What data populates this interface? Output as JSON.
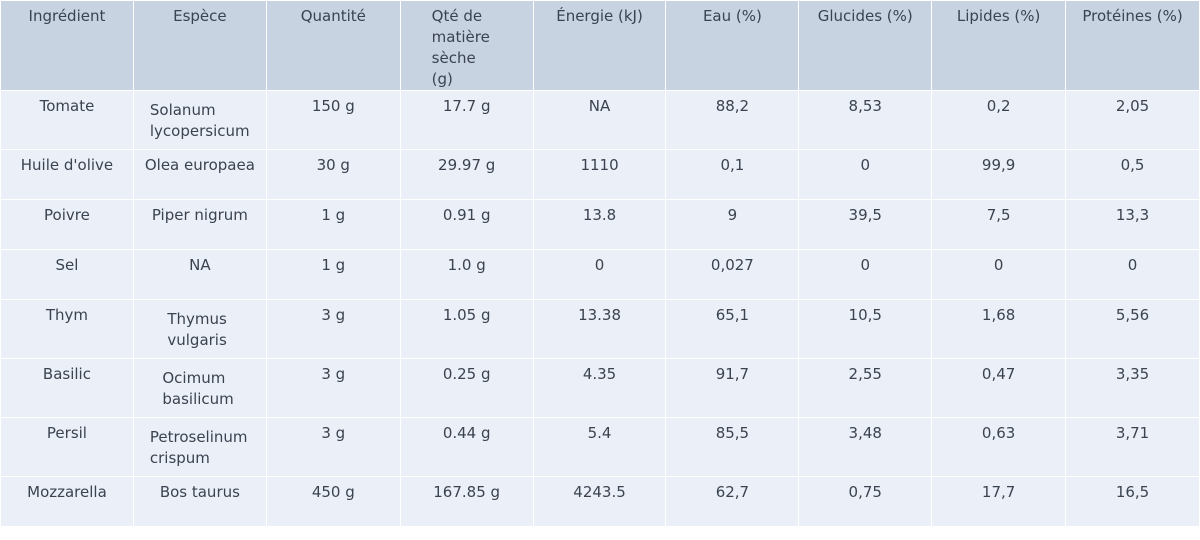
{
  "chart_data": {
    "type": "table",
    "columns": [
      "Ingrédient",
      "Espèce",
      "Quantité",
      "Qté de matière sèche (g)",
      "Énergie (kJ)",
      "Eau (%)",
      "Glucides (%)",
      "Lipides (%)",
      "Protéines (%)"
    ],
    "rows": [
      [
        "Tomate",
        "Solanum lycopersicum",
        "150 g",
        "17.7 g",
        "NA",
        "88,2",
        "8,53",
        "0,2",
        "2,05"
      ],
      [
        "Huile d'olive",
        "Olea europaea",
        "30 g",
        "29.97 g",
        "1110",
        "0,1",
        "0",
        "99,9",
        "0,5"
      ],
      [
        "Poivre",
        "Piper nigrum",
        "1 g",
        "0.91 g",
        "13.8",
        "9",
        "39,5",
        "7,5",
        "13,3"
      ],
      [
        "Sel",
        "NA",
        "1 g",
        "1.0 g",
        "0",
        "0,027",
        "0",
        "0",
        "0"
      ],
      [
        "Thym",
        "Thymus vulgaris",
        "3 g",
        "1.05 g",
        "13.38",
        "65,1",
        "10,5",
        "1,68",
        "5,56"
      ],
      [
        "Basilic",
        "Ocimum basilicum",
        "3 g",
        "0.25 g",
        "4.35",
        "91,7",
        "2,55",
        "0,47",
        "3,35"
      ],
      [
        "Persil",
        "Petroselinum crispum",
        "3 g",
        "0.44 g",
        "5.4",
        "85,5",
        "3,48",
        "0,63",
        "3,71"
      ],
      [
        "Mozzarella",
        "Bos taurus",
        "450 g",
        "167.85 g",
        "4243.5",
        "62,7",
        "0,75",
        "17,7",
        "16,5"
      ]
    ]
  },
  "colors": {
    "header_fill": "#c8d3e2",
    "cell_fill": "#ebeff7",
    "text": "#3a4350",
    "grid_line": "#ffffff"
  }
}
